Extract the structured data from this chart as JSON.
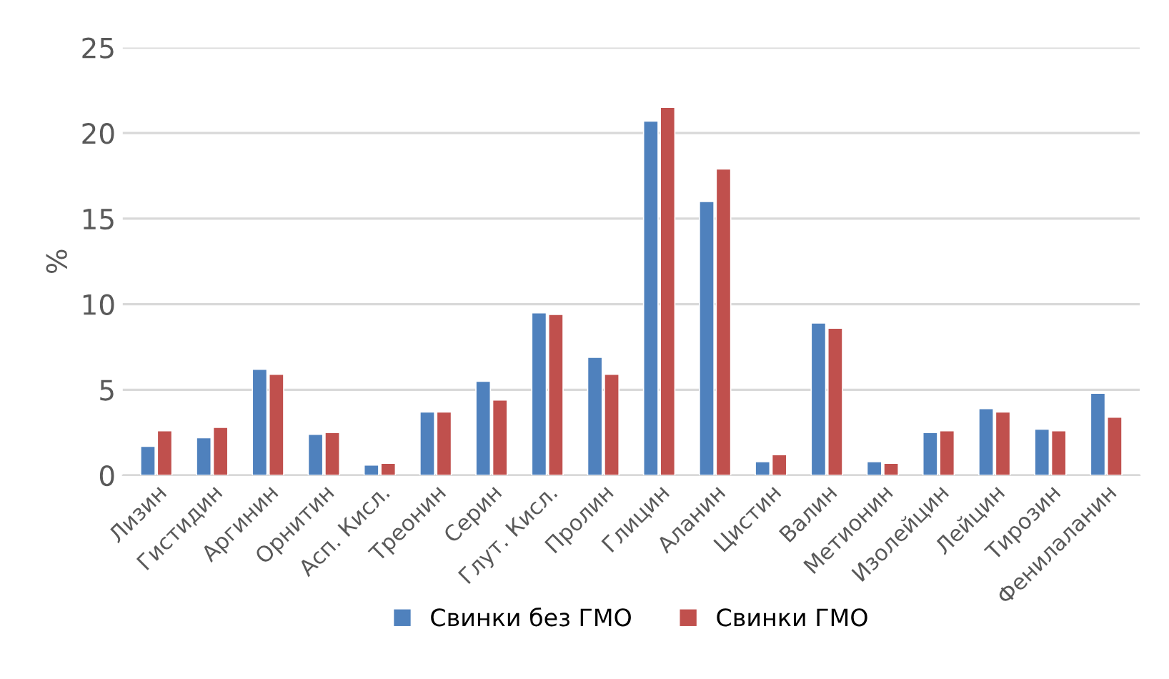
{
  "chart_data": {
    "type": "bar",
    "ylabel": "%",
    "categories": [
      "Лизин",
      "Гистидин",
      "Аргинин",
      "Орнитин",
      "Асп. Кисл.",
      "Треонин",
      "Серин",
      "Глут. Кисл.",
      "Пролин",
      "Глицин",
      "Аланин",
      "Цистин",
      "Валин",
      "Метионин",
      "Изолейцин",
      "Лейцин",
      "Тирозин",
      "Фенилаланин"
    ],
    "series": [
      {
        "name": "Свинки без ГМО",
        "color": "#4f81bd",
        "values": [
          1.7,
          2.2,
          6.2,
          2.4,
          0.6,
          3.7,
          5.5,
          9.5,
          6.9,
          20.7,
          16.0,
          0.8,
          8.9,
          0.8,
          2.5,
          3.9,
          2.7,
          4.8
        ]
      },
      {
        "name": "Свинки ГМО",
        "color": "#c0504d",
        "values": [
          2.6,
          2.8,
          5.9,
          2.5,
          0.7,
          3.7,
          4.4,
          9.4,
          5.9,
          21.5,
          17.9,
          1.2,
          8.6,
          0.7,
          2.6,
          3.7,
          2.6,
          3.4
        ]
      }
    ],
    "ylim": [
      0,
      25
    ],
    "yticks": [
      0,
      5,
      10,
      15,
      20,
      25
    ],
    "grid": "y",
    "legend": "bottom"
  }
}
